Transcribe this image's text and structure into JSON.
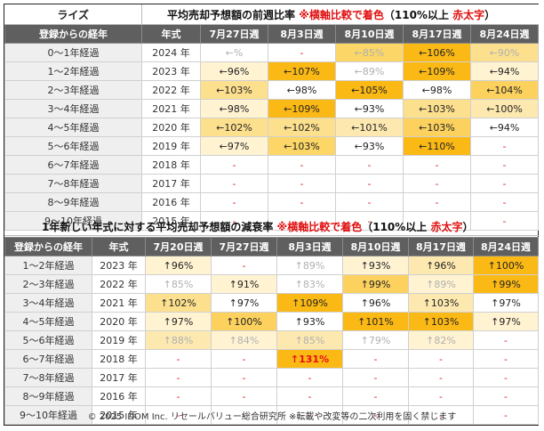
{
  "table1": {
    "header_left": "ライズ",
    "title_main": "平均売却予想額の前週比率",
    "title_note_red": "※横軸比較で着色",
    "title_note_black": "（110%以上",
    "title_note_red2": "赤太字",
    "title_note_close": "）",
    "col_headers": [
      "登録からの経年",
      "年式",
      "7月27日週",
      "8月3日週",
      "8月10日週",
      "8月17日週",
      "8月24日週"
    ],
    "rows": [
      {
        "label": "0～1年経過",
        "year": "2024 年",
        "cells": [
          {
            "t": "←%",
            "c": "#ffffff",
            "s": "muted"
          },
          {
            "t": "-",
            "c": "#ffffff",
            "s": "dash"
          },
          {
            "t": "←85%",
            "c": "#fcd667",
            "s": "muted"
          },
          {
            "t": "←106%",
            "c": "#fbb916",
            "s": ""
          },
          {
            "t": "←90%",
            "c": "#fde08e",
            "s": "muted"
          }
        ]
      },
      {
        "label": "1～2年経過",
        "year": "2023 年",
        "cells": [
          {
            "t": "←96%",
            "c": "#fff3d2",
            "s": ""
          },
          {
            "t": "←107%",
            "c": "#fbb916",
            "s": ""
          },
          {
            "t": "←89%",
            "c": "#ffffff",
            "s": "muted"
          },
          {
            "t": "←109%",
            "c": "#fbb916",
            "s": ""
          },
          {
            "t": "←94%",
            "c": "#fff3d2",
            "s": ""
          }
        ]
      },
      {
        "label": "2～3年経過",
        "year": "2022 年",
        "cells": [
          {
            "t": "←103%",
            "c": "#fde08e",
            "s": ""
          },
          {
            "t": "←98%",
            "c": "#ffffff",
            "s": ""
          },
          {
            "t": "←105%",
            "c": "#fbb916",
            "s": ""
          },
          {
            "t": "←98%",
            "c": "#ffffff",
            "s": ""
          },
          {
            "t": "←104%",
            "c": "#fcd15e",
            "s": ""
          }
        ]
      },
      {
        "label": "3～4年経過",
        "year": "2021 年",
        "cells": [
          {
            "t": "←98%",
            "c": "#fff3d2",
            "s": ""
          },
          {
            "t": "←109%",
            "c": "#fbb916",
            "s": ""
          },
          {
            "t": "←93%",
            "c": "#ffffff",
            "s": ""
          },
          {
            "t": "←103%",
            "c": "#fde08e",
            "s": ""
          },
          {
            "t": "←100%",
            "c": "#fde9b0",
            "s": ""
          }
        ]
      },
      {
        "label": "4～5年経過",
        "year": "2020 年",
        "cells": [
          {
            "t": "←102%",
            "c": "#fde08e",
            "s": ""
          },
          {
            "t": "←102%",
            "c": "#fde08e",
            "s": ""
          },
          {
            "t": "←101%",
            "c": "#fde9b0",
            "s": ""
          },
          {
            "t": "←103%",
            "c": "#fcd15e",
            "s": ""
          },
          {
            "t": "←94%",
            "c": "#ffffff",
            "s": ""
          }
        ]
      },
      {
        "label": "5～6年経過",
        "year": "2019 年",
        "cells": [
          {
            "t": "←97%",
            "c": "#fff3d2",
            "s": ""
          },
          {
            "t": "←103%",
            "c": "#fcd667",
            "s": ""
          },
          {
            "t": "←93%",
            "c": "#ffffff",
            "s": ""
          },
          {
            "t": "←110%",
            "c": "#fbb916",
            "s": ""
          },
          {
            "t": "-",
            "c": "#ffffff",
            "s": "dash"
          }
        ]
      },
      {
        "label": "6～7年経過",
        "year": "2018 年",
        "cells": [
          {
            "t": "-",
            "c": "#ffffff",
            "s": "dash"
          },
          {
            "t": "-",
            "c": "#ffffff",
            "s": "dash"
          },
          {
            "t": "-",
            "c": "#ffffff",
            "s": "dash"
          },
          {
            "t": "-",
            "c": "#ffffff",
            "s": "dash"
          },
          {
            "t": "-",
            "c": "#ffffff",
            "s": "dash"
          }
        ]
      },
      {
        "label": "7～8年経過",
        "year": "2017 年",
        "cells": [
          {
            "t": "-",
            "c": "#ffffff",
            "s": "dash"
          },
          {
            "t": "-",
            "c": "#ffffff",
            "s": "dash"
          },
          {
            "t": "-",
            "c": "#ffffff",
            "s": "dash"
          },
          {
            "t": "-",
            "c": "#ffffff",
            "s": "dash"
          },
          {
            "t": "-",
            "c": "#ffffff",
            "s": "dash"
          }
        ]
      },
      {
        "label": "8～9年経過",
        "year": "2016 年",
        "cells": [
          {
            "t": "-",
            "c": "#ffffff",
            "s": "dash"
          },
          {
            "t": "-",
            "c": "#ffffff",
            "s": "dash"
          },
          {
            "t": "-",
            "c": "#ffffff",
            "s": "dash"
          },
          {
            "t": "-",
            "c": "#ffffff",
            "s": "dash"
          },
          {
            "t": "-",
            "c": "#ffffff",
            "s": "dash"
          }
        ]
      },
      {
        "label": "9～10年経過",
        "year": "2015 年",
        "cells": [
          {
            "t": "-",
            "c": "#ffffff",
            "s": "dash"
          },
          {
            "t": "-",
            "c": "#ffffff",
            "s": "dash"
          },
          {
            "t": "-",
            "c": "#ffffff",
            "s": "dash"
          },
          {
            "t": "-",
            "c": "#ffffff",
            "s": "dash"
          },
          {
            "t": "-",
            "c": "#ffffff",
            "s": "dash"
          }
        ]
      }
    ]
  },
  "table2": {
    "title_main": "1年新しい年式に対する平均売却予想額の減衰率",
    "title_note_red": "※横軸比較で着色",
    "title_note_black": "（110%以上",
    "title_note_red2": "赤太字",
    "title_note_close": "）",
    "col_headers": [
      "登録からの経年",
      "年式",
      "7月20日週",
      "7月27日週",
      "8月3日週",
      "8月10日週",
      "8月17日週",
      "8月24日週"
    ],
    "rows": [
      {
        "label": "1～2年経過",
        "year": "2023 年",
        "cells": [
          {
            "t": "↑96%",
            "c": "#fff3d2",
            "s": ""
          },
          {
            "t": "-",
            "c": "#ffffff",
            "s": "dash"
          },
          {
            "t": "↑89%",
            "c": "#ffffff",
            "s": "muted"
          },
          {
            "t": "↑93%",
            "c": "#fff3d2",
            "s": ""
          },
          {
            "t": "↑96%",
            "c": "#fde9b0",
            "s": ""
          },
          {
            "t": "↑100%",
            "c": "#fbb916",
            "s": ""
          }
        ]
      },
      {
        "label": "2～3年経過",
        "year": "2022 年",
        "cells": [
          {
            "t": "↑85%",
            "c": "#ffffff",
            "s": "muted"
          },
          {
            "t": "↑91%",
            "c": "#fff3d2",
            "s": ""
          },
          {
            "t": "↑83%",
            "c": "#ffffff",
            "s": "muted"
          },
          {
            "t": "↑99%",
            "c": "#fcd15e",
            "s": ""
          },
          {
            "t": "↑89%",
            "c": "#fff3d2",
            "s": "muted"
          },
          {
            "t": "↑99%",
            "c": "#fbb916",
            "s": ""
          }
        ]
      },
      {
        "label": "3～4年経過",
        "year": "2021 年",
        "cells": [
          {
            "t": "↑102%",
            "c": "#fde08e",
            "s": ""
          },
          {
            "t": "↑97%",
            "c": "#ffffff",
            "s": ""
          },
          {
            "t": "↑109%",
            "c": "#fbb916",
            "s": ""
          },
          {
            "t": "↑96%",
            "c": "#ffffff",
            "s": ""
          },
          {
            "t": "↑103%",
            "c": "#fde9b0",
            "s": ""
          },
          {
            "t": "↑97%",
            "c": "#ffffff",
            "s": ""
          }
        ]
      },
      {
        "label": "4～5年経過",
        "year": "2020 年",
        "cells": [
          {
            "t": "↑97%",
            "c": "#fff3d2",
            "s": ""
          },
          {
            "t": "↑100%",
            "c": "#fcd15e",
            "s": ""
          },
          {
            "t": "↑93%",
            "c": "#ffffff",
            "s": ""
          },
          {
            "t": "↑101%",
            "c": "#fbb916",
            "s": ""
          },
          {
            "t": "↑103%",
            "c": "#fbb916",
            "s": ""
          },
          {
            "t": "↑97%",
            "c": "#fff3d2",
            "s": ""
          }
        ]
      },
      {
        "label": "5～6年経過",
        "year": "2019 年",
        "cells": [
          {
            "t": "↑88%",
            "c": "#fde9b0",
            "s": "muted"
          },
          {
            "t": "↑84%",
            "c": "#fff3d2",
            "s": "muted"
          },
          {
            "t": "↑85%",
            "c": "#fde9b0",
            "s": "muted"
          },
          {
            "t": "↑79%",
            "c": "#ffffff",
            "s": "muted"
          },
          {
            "t": "↑82%",
            "c": "#fff3d2",
            "s": "muted"
          },
          {
            "t": "-",
            "c": "#ffffff",
            "s": "dash"
          }
        ]
      },
      {
        "label": "6～7年経過",
        "year": "2018 年",
        "cells": [
          {
            "t": "-",
            "c": "#ffffff",
            "s": "dash"
          },
          {
            "t": "-",
            "c": "#ffffff",
            "s": "dash"
          },
          {
            "t": "↑131%",
            "c": "#fbb916",
            "s": "bold-red"
          },
          {
            "t": "-",
            "c": "#ffffff",
            "s": "dash"
          },
          {
            "t": "-",
            "c": "#ffffff",
            "s": "dash"
          },
          {
            "t": "-",
            "c": "#ffffff",
            "s": "dash"
          }
        ]
      },
      {
        "label": "7～8年経過",
        "year": "2017 年",
        "cells": [
          {
            "t": "-",
            "c": "#ffffff",
            "s": "dash"
          },
          {
            "t": "-",
            "c": "#ffffff",
            "s": "dash"
          },
          {
            "t": "-",
            "c": "#ffffff",
            "s": "dash"
          },
          {
            "t": "-",
            "c": "#ffffff",
            "s": "dash"
          },
          {
            "t": "-",
            "c": "#ffffff",
            "s": "dash"
          },
          {
            "t": "-",
            "c": "#ffffff",
            "s": "dash"
          }
        ]
      },
      {
        "label": "8～9年経過",
        "year": "2016 年",
        "cells": [
          {
            "t": "-",
            "c": "#ffffff",
            "s": "dash"
          },
          {
            "t": "-",
            "c": "#ffffff",
            "s": "dash"
          },
          {
            "t": "-",
            "c": "#ffffff",
            "s": "dash"
          },
          {
            "t": "-",
            "c": "#ffffff",
            "s": "dash"
          },
          {
            "t": "-",
            "c": "#ffffff",
            "s": "dash"
          },
          {
            "t": "-",
            "c": "#ffffff",
            "s": "dash"
          }
        ]
      },
      {
        "label": "9～10年経過",
        "year": "2015 年",
        "cells": [
          {
            "t": "-",
            "c": "#ffffff",
            "s": "dash"
          },
          {
            "t": "-",
            "c": "#ffffff",
            "s": "dash"
          },
          {
            "t": "-",
            "c": "#ffffff",
            "s": "dash"
          },
          {
            "t": "-",
            "c": "#ffffff",
            "s": "dash"
          },
          {
            "t": "-",
            "c": "#ffffff",
            "s": "dash"
          },
          {
            "t": "-",
            "c": "#ffffff",
            "s": "dash"
          }
        ]
      }
    ]
  },
  "footer": "© 2025 IDOM Inc. リセールバリュー総合研究所 ※転載や改変等の二次利用を固く禁じます"
}
